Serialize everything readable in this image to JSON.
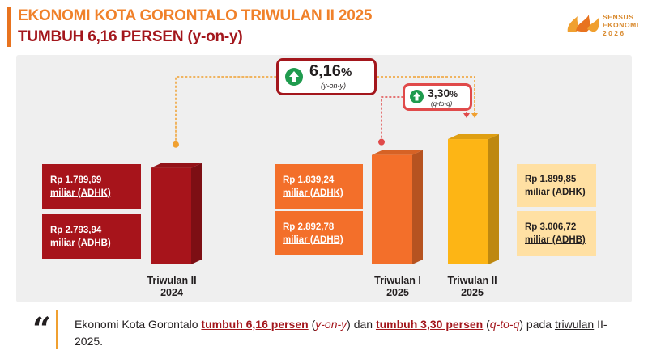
{
  "header": {
    "title_line1": "EKONOMI KOTA GORONTALO TRIWULAN II 2025",
    "title_line2": "TUMBUH 6,16 PERSEN (y-on-y)"
  },
  "logo": {
    "line1": "SENSUS",
    "line2": "EKONOMI",
    "line3": "2026"
  },
  "chart_data": {
    "type": "bar",
    "categories": [
      "Triwulan II 2024",
      "Triwulan I 2025",
      "Triwulan II 2025"
    ],
    "series": [
      {
        "name": "ADHK",
        "unit": "miliar rupiah",
        "values": [
          1789.69,
          1839.24,
          1899.85
        ]
      },
      {
        "name": "ADHB",
        "unit": "miliar rupiah",
        "values": [
          2793.94,
          2892.78,
          3006.72
        ]
      }
    ],
    "bars_series": "ADHK",
    "growth": [
      {
        "value": "6,16",
        "unit": "%",
        "label": "(y-on-y)",
        "from": "Triwulan II 2024",
        "to": "Triwulan II 2025"
      },
      {
        "value": "3,30",
        "unit": "%",
        "label": "(q-to-q)",
        "from": "Triwulan I 2025",
        "to": "Triwulan II 2025"
      }
    ],
    "colors": [
      "#a7141b",
      "#f36f2a",
      "#fdb515"
    ]
  },
  "bar_labels": [
    {
      "line1": "Triwulan II",
      "line2": "2024"
    },
    {
      "line1": "Triwulan I",
      "line2": "2025"
    },
    {
      "line1": "Triwulan II",
      "line2": "2025"
    }
  ],
  "value_boxes": [
    {
      "adhk_line1": "Rp 1.789,69",
      "adhk_line2": "miliar (ADHK)",
      "adhb_line1": "Rp 2.793,94",
      "adhb_line2": "miliar (ADHB)"
    },
    {
      "adhk_line1": "Rp 1.839,24",
      "adhk_line2": "miliar (ADHK)",
      "adhb_line1": "Rp 2.892,78",
      "adhb_line2": "miliar (ADHB)"
    },
    {
      "adhk_line1": "Rp 1.899,85",
      "adhk_line2": "miliar (ADHK)",
      "adhb_line1": "Rp 3.006,72",
      "adhb_line2": "miliar (ADHB)"
    }
  ],
  "quote": {
    "part1": "Ekonomi Kota Gorontalo ",
    "hl1": "tumbuh 6,16 persen",
    "part2": " (",
    "it1": "y-on-y",
    "part3": ") dan ",
    "hl2": "tumbuh 3,30 persen",
    "part4": " (",
    "it2": "q-to-q",
    "part5": ") pada ",
    "ul1": "triwulan",
    "part6": " II-2025."
  },
  "colors": {
    "accent": "#e8731f",
    "title_orange": "#f0812a",
    "title_red": "#a3161c",
    "up_green": "#1f9b4e"
  }
}
